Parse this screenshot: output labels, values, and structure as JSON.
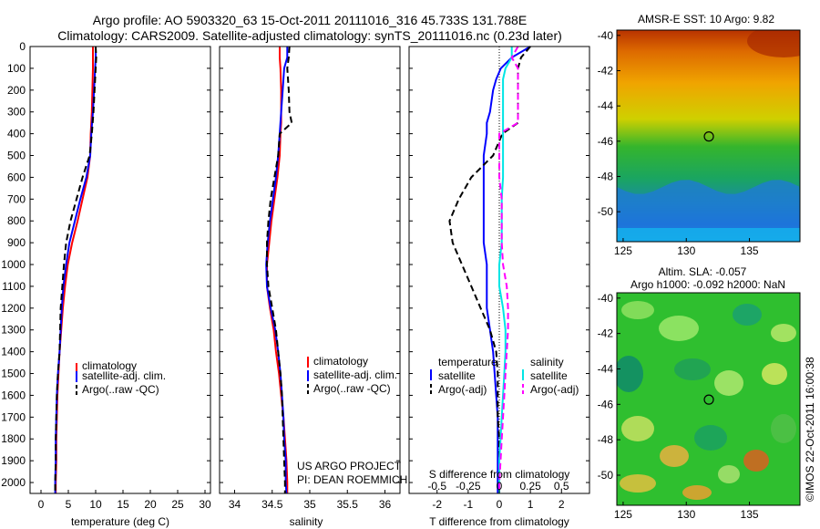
{
  "header": {
    "title_line1": "Argo profile: AO 5903320_63 15-Oct-2011 20111016_316 45.733S 131.788E",
    "title_line2": "Climatology: CARS2009. Satellite-adjusted climatology: synTS_20111016.nc (0.23d later)"
  },
  "colors": {
    "climatology": "#ff0000",
    "satellite": "#0000ff",
    "argo": "#000000",
    "sal_satellite": "#00e5e5",
    "sal_argo": "#ff00ff"
  },
  "chart_data": [
    {
      "type": "line",
      "xlabel": "temperature (deg C)",
      "xlim": [
        -2,
        31
      ],
      "xticks": [
        "0",
        "5",
        "10",
        "15",
        "20",
        "25",
        "30"
      ],
      "ylim": [
        0,
        2050
      ],
      "yticks": [
        "0",
        "100",
        "200",
        "300",
        "400",
        "500",
        "600",
        "700",
        "800",
        "900",
        "1000",
        "1100",
        "1200",
        "1300",
        "1400",
        "1500",
        "1600",
        "1700",
        "1800",
        "1900",
        "2000"
      ],
      "legend": [
        "climatology",
        "satellite-adj. clim.",
        "Argo(..raw -QC)"
      ],
      "depth": [
        0,
        50,
        100,
        200,
        300,
        400,
        500,
        600,
        700,
        800,
        900,
        1000,
        1100,
        1200,
        1300,
        1400,
        1500,
        1600,
        1700,
        1800,
        1900,
        2000,
        2050
      ],
      "series": [
        {
          "name": "climatology",
          "values": [
            9.5,
            9.5,
            9.5,
            9.4,
            9.3,
            9.1,
            9.0,
            8.5,
            7.6,
            6.7,
            5.7,
            4.9,
            4.4,
            4.0,
            3.7,
            3.4,
            3.2,
            3.0,
            2.9,
            2.8,
            2.8,
            2.7,
            2.7
          ]
        },
        {
          "name": "satellite-adj. clim.",
          "values": [
            10.0,
            10.0,
            9.9,
            9.7,
            9.5,
            9.2,
            9.0,
            8.3,
            7.2,
            6.2,
            5.2,
            4.6,
            4.1,
            3.8,
            3.6,
            3.4,
            3.1,
            2.9,
            2.8,
            2.7,
            2.7,
            2.6,
            2.6
          ]
        },
        {
          "name": "Argo(..raw -QC)",
          "values": [
            10.0,
            10.1,
            10.0,
            9.8,
            9.6,
            9.3,
            8.9,
            7.6,
            6.5,
            5.4,
            4.6,
            4.2,
            3.9,
            3.6,
            3.5,
            3.4,
            3.1,
            2.9,
            2.8,
            2.7,
            2.7,
            2.6,
            2.6
          ]
        }
      ],
      "annotation": []
    },
    {
      "type": "line",
      "xlabel": "salinity",
      "xlim": [
        33.8,
        36.2
      ],
      "xticks": [
        "34",
        "34.5",
        "35",
        "35.5",
        "36"
      ],
      "ylim": [
        0,
        2050
      ],
      "legend": [
        "climatology",
        "satellite-adj. clim.",
        "Argo(..raw -QC)"
      ],
      "depth": [
        0,
        50,
        100,
        200,
        300,
        350,
        400,
        500,
        600,
        700,
        800,
        900,
        1000,
        1100,
        1200,
        1300,
        1400,
        1500,
        1600,
        1700,
        1800,
        1900,
        2000,
        2050
      ],
      "series": [
        {
          "name": "climatology",
          "values": [
            34.6,
            34.6,
            34.61,
            34.62,
            34.62,
            34.62,
            34.61,
            34.6,
            34.57,
            34.53,
            34.49,
            34.46,
            34.43,
            34.43,
            34.47,
            34.52,
            34.55,
            34.59,
            34.62,
            34.65,
            34.67,
            34.69,
            34.7,
            34.7
          ]
        },
        {
          "name": "satellite-adj. clim.",
          "values": [
            34.7,
            34.7,
            34.66,
            34.64,
            34.62,
            34.61,
            34.6,
            34.58,
            34.55,
            34.51,
            34.47,
            34.44,
            34.42,
            34.43,
            34.48,
            34.54,
            34.58,
            34.61,
            34.63,
            34.65,
            34.66,
            34.68,
            34.68,
            34.69
          ]
        },
        {
          "name": "Argo(..raw -QC)",
          "values": [
            34.73,
            34.72,
            34.7,
            34.72,
            34.73,
            34.76,
            34.6,
            34.58,
            34.53,
            34.48,
            34.45,
            34.43,
            34.43,
            34.45,
            34.5,
            34.55,
            34.58,
            34.61,
            34.63,
            34.64,
            34.65,
            34.66,
            34.67,
            34.67
          ]
        }
      ],
      "annotation": [
        "US ARGO PROJECT",
        "PI: DEAN ROEMMICH"
      ]
    },
    {
      "type": "line",
      "xlabel": "T difference from climatology",
      "xlim": [
        -2.9,
        2.9
      ],
      "xticks": [
        "-2",
        "-1",
        "0",
        "1",
        "2"
      ],
      "top_label": "S difference from climatology",
      "top_ticks": [
        "-0.5",
        "-0.25",
        "0",
        "0.25",
        "0.5"
      ],
      "ylim": [
        0,
        2050
      ],
      "legend_groups": [
        {
          "title": "temperature",
          "entries": [
            "satellite",
            "Argo(-adj)"
          ]
        },
        {
          "title": "salinity",
          "entries": [
            "satellite",
            "Argo(-adj)"
          ]
        }
      ],
      "depth": [
        0,
        50,
        100,
        150,
        200,
        300,
        350,
        400,
        500,
        600,
        700,
        800,
        900,
        1000,
        1100,
        1200,
        1300,
        1400,
        1500,
        1600,
        1700,
        1800,
        1900,
        2000,
        2050
      ],
      "series": [
        {
          "name": "temperature satellite",
          "values": [
            1.0,
            0.4,
            0.05,
            -0.1,
            -0.2,
            -0.3,
            -0.4,
            -0.4,
            -0.5,
            -0.5,
            -0.5,
            -0.5,
            -0.5,
            -0.4,
            -0.4,
            -0.4,
            -0.3,
            -0.2,
            -0.15,
            -0.1,
            -0.05,
            -0.05,
            -0.05,
            -0.05,
            -0.05
          ]
        },
        {
          "name": "temperature Argo(-adj)",
          "values": [
            1.0,
            0.7,
            0.6,
            0.6,
            0.6,
            0.6,
            0.6,
            0.1,
            -0.2,
            -0.9,
            -1.3,
            -1.6,
            -1.5,
            -1.2,
            -0.9,
            -0.6,
            -0.3,
            -0.1,
            -0.05,
            -0.05,
            -0.05,
            0,
            0,
            0,
            0
          ]
        },
        {
          "name": "salinity satellite",
          "values": [
            0.1,
            0.1,
            0.05,
            0.03,
            0.03,
            0.03,
            0.03,
            0.03,
            0.03,
            0.03,
            0.02,
            0.02,
            0.02,
            0.0,
            0.0,
            0.03,
            0.05,
            0.05,
            0.04,
            0.03,
            0.02,
            0.01,
            0.0,
            0.0,
            0.0
          ]
        },
        {
          "name": "salinity Argo(-adj)",
          "values": [
            0.15,
            0.1,
            0.15,
            0.15,
            0.15,
            0.15,
            0.15,
            0.0,
            0.0,
            0.0,
            0.02,
            0.02,
            0.02,
            0.03,
            0.06,
            0.07,
            0.07,
            0.06,
            0.05,
            0.04,
            0.03,
            0.02,
            0.01,
            0.0,
            0.0
          ]
        }
      ],
      "annotation": []
    },
    {
      "type": "heatmap",
      "title": "AMSR-E SST: 10 Argo: 9.82",
      "xticks": [
        "125",
        "130",
        "135"
      ],
      "yticks": [
        "-40",
        "-42",
        "-44",
        "-46",
        "-48",
        "-50"
      ],
      "xlim": [
        124.5,
        139
      ],
      "ylim": [
        -51.7,
        -39.7
      ],
      "marker": {
        "lon": 131.788,
        "lat": -45.733
      }
    },
    {
      "type": "heatmap",
      "title_line1": "Altim. SLA: -0.057",
      "title_line2": "Argo h1000: -0.092 h2000: NaN",
      "xticks": [
        "125",
        "130",
        "135"
      ],
      "yticks": [
        "-40",
        "-42",
        "-44",
        "-46",
        "-48",
        "-50"
      ],
      "xlim": [
        124.5,
        139
      ],
      "ylim": [
        -51.7,
        -39.7
      ],
      "marker": {
        "lon": 131.788,
        "lat": -45.733
      }
    }
  ],
  "footer": {
    "side_text": "©IMOS 22-Oct-2011 16:00:38"
  }
}
